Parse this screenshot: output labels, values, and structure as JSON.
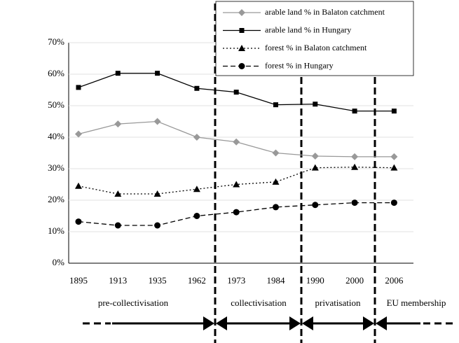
{
  "chart_data": {
    "type": "line",
    "categories": [
      "1895",
      "1913",
      "1935",
      "1962",
      "1973",
      "1984",
      "1990",
      "2000",
      "2006"
    ],
    "series": [
      {
        "name": "arable land % in Balaton catchment",
        "color": "#999999",
        "values": [
          41,
          44.2,
          45,
          40,
          38.5,
          35,
          34,
          33.8,
          33.8
        ]
      },
      {
        "name": "arable land % in Hungary",
        "color": "#000000",
        "values": [
          55.8,
          60.3,
          60.3,
          55.5,
          54.3,
          50.3,
          50.5,
          48.3,
          48.3
        ]
      },
      {
        "name": "forest % in Balaton catchment",
        "color": "#000000",
        "values": [
          24.5,
          22,
          22,
          23.5,
          25,
          25.8,
          30.3,
          30.5,
          30.3
        ]
      },
      {
        "name": "forest % in Hungary",
        "color": "#000000",
        "values": [
          13.2,
          12,
          12,
          15,
          16.2,
          17.8,
          18.5,
          19.2,
          19.2
        ]
      }
    ],
    "ylim": [
      0,
      70
    ],
    "yticks": [
      {
        "value": 0,
        "label": "0%"
      },
      {
        "value": 10,
        "label": "10%"
      },
      {
        "value": 20,
        "label": "20%"
      },
      {
        "value": 30,
        "label": "30%"
      },
      {
        "value": 40,
        "label": "40%"
      },
      {
        "value": 50,
        "label": "50%"
      },
      {
        "value": 60,
        "label": "60%"
      },
      {
        "value": 70,
        "label": "70%"
      }
    ],
    "grid": true,
    "periods": [
      "pre-collectivisation",
      "collectivisation",
      "privatisation",
      "EU membership"
    ]
  }
}
